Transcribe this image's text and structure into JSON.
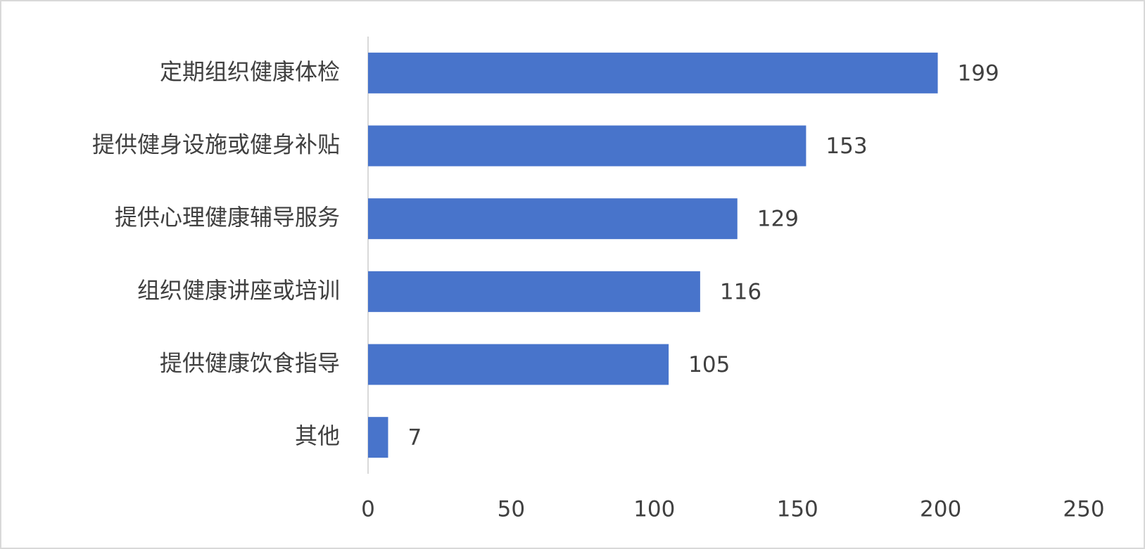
{
  "chart_data": {
    "type": "barh",
    "categories": [
      "定期组织健康体检",
      "提供健身设施或健身补贴",
      "提供心理健康辅导服务",
      "组织健康讲座或培训",
      "提供健康饮食指导",
      "其他"
    ],
    "values": [
      199,
      153,
      129,
      116,
      105,
      7
    ],
    "color": "#4874cb",
    "xlim": [
      0,
      250
    ],
    "xticks": [
      0,
      50,
      100,
      150,
      200,
      250
    ],
    "grid": false,
    "data_labels": true
  }
}
